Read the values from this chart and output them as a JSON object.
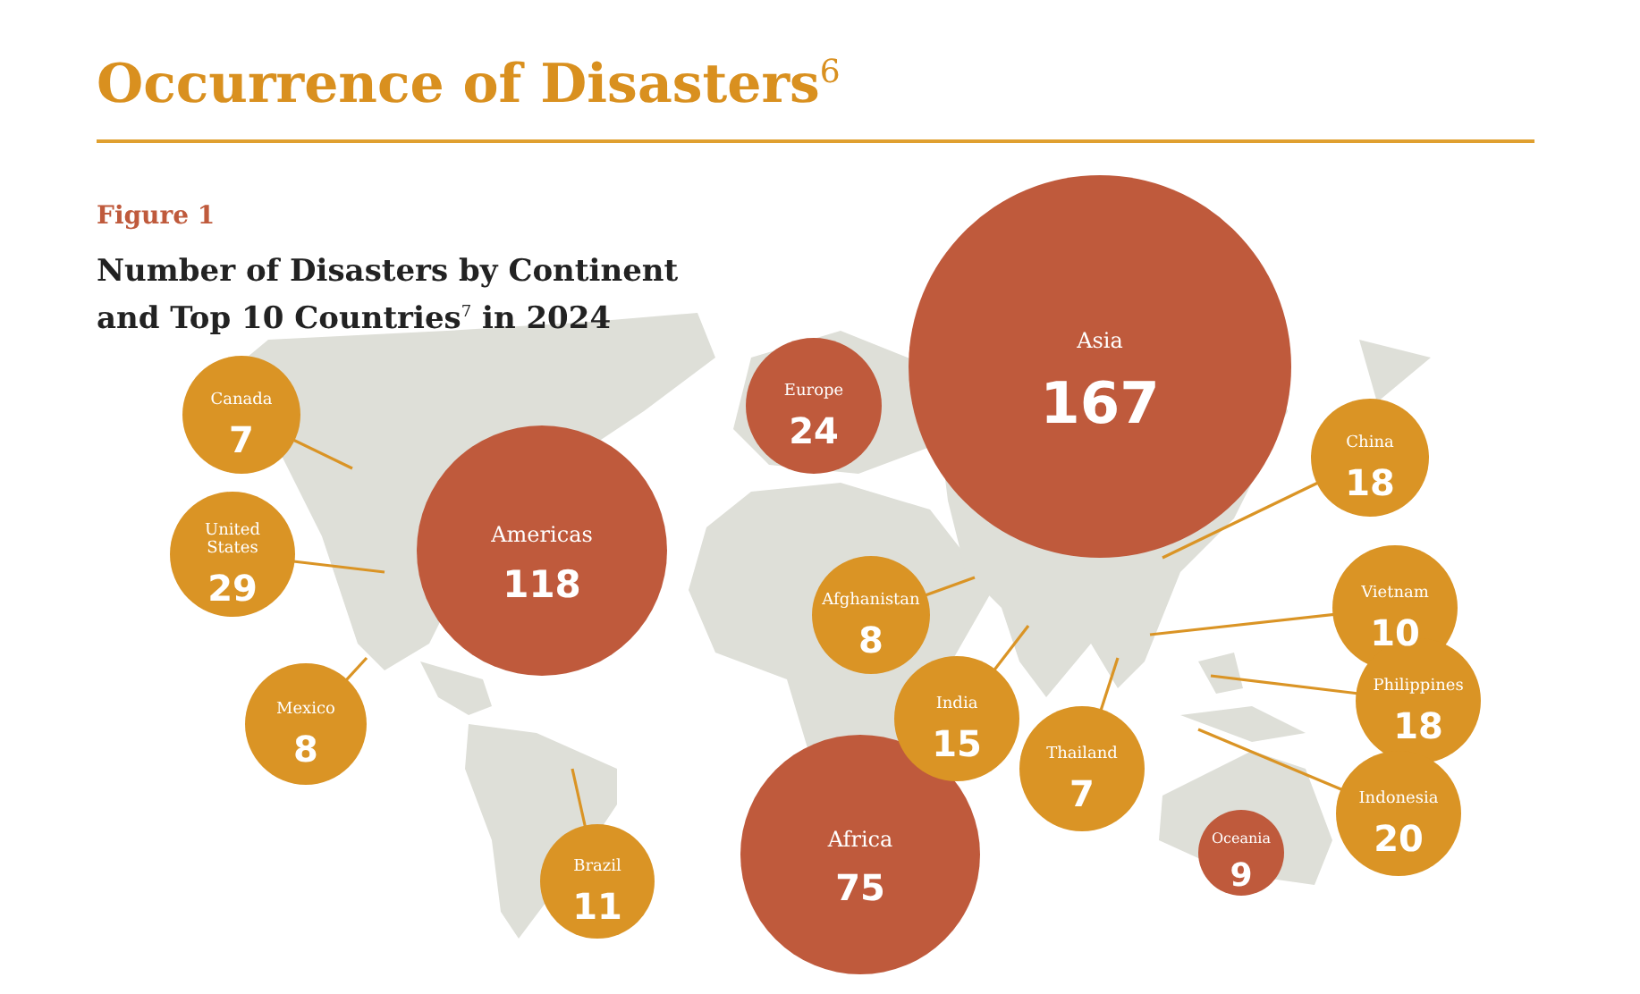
{
  "chart_data": {
    "type": "other",
    "title": "Occurrence of Disasters$^{6}$",
    "subtitle": "Number of Disasters by Continent and Top 10 Countries$^{7}$ in 2024",
    "annotations": [
      "Figure 1"
    ],
    "data_labels": true,
    "categories": [
      "Asia",
      "Americas",
      "Europe",
      "Africa",
      "Oceania",
      "Canada",
      "United States",
      "Mexico",
      "Brazil",
      "Afghanistan",
      "India",
      "Thailand",
      "China",
      "Vietnam",
      "Philippines",
      "Indonesia"
    ],
    "values": [
      167,
      118,
      24,
      75,
      9,
      7,
      29,
      8,
      11,
      8,
      15,
      7,
      18,
      10,
      18,
      20
    ],
    "colors": [
      "#bf5a3c",
      "#bf5a3c",
      "#bf5a3c",
      "#bf5a3c",
      "#bf5a3c",
      "#da9425",
      "#da9425",
      "#da9425",
      "#da9425",
      "#da9425",
      "#da9425",
      "#da9425",
      "#da9425",
      "#da9425",
      "#da9425",
      "#da9425"
    ]
  }
}
